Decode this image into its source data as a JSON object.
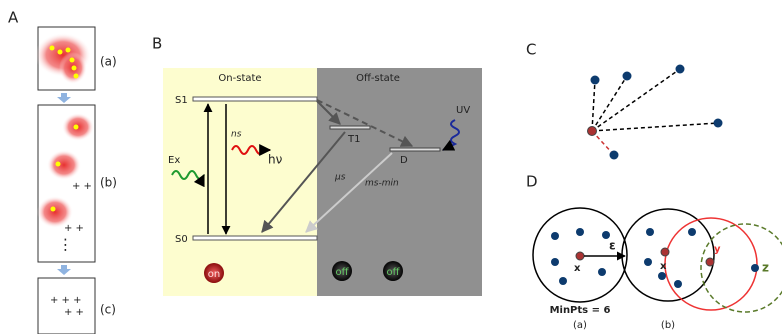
{
  "panel_a": {
    "label": "A",
    "sublabels": [
      "(a)",
      "(b)",
      "(c)"
    ]
  },
  "panel_b": {
    "label": "B",
    "on_state": "On-state",
    "off_state": "Off-state",
    "levels": {
      "s1": "S1",
      "s0": "S0",
      "t1": "T1",
      "d": "D"
    },
    "labels": {
      "ns": "ns",
      "hv": "hν",
      "ex": "Ex",
      "us": "μs",
      "ms_min": "ms-min",
      "uv": "UV"
    },
    "buttons": [
      "on",
      "off",
      "off"
    ]
  },
  "panel_c": {
    "label": "C"
  },
  "panel_d": {
    "label": "D",
    "epsilon": "ε",
    "x_a": "x",
    "min_pts": "MinPts = 6",
    "caption_a": "(a)",
    "x_b": "x",
    "y": "y",
    "z": "z",
    "caption_b": "(b)"
  }
}
